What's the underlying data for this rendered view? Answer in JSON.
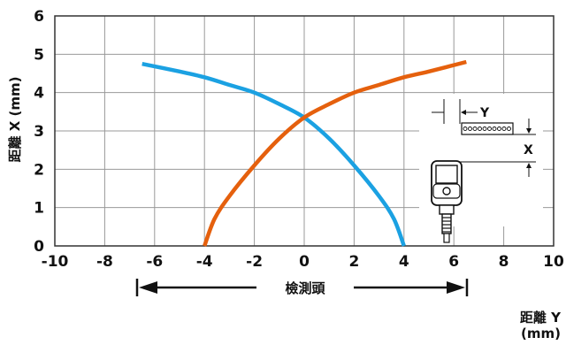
{
  "chart_data": {
    "type": "line",
    "xlabel": "距離 Y",
    "xlabel_unit": "(mm)",
    "ylabel": "距離 X (mm)",
    "xlim": [
      -10,
      10
    ],
    "ylim": [
      0,
      6
    ],
    "x_ticks": [
      "-10",
      "-8",
      "-6",
      "-4",
      "-2",
      "0",
      "2",
      "4",
      "6",
      "8",
      "10"
    ],
    "y_ticks": [
      "0",
      "1",
      "2",
      "3",
      "4",
      "5",
      "6"
    ],
    "grid": true,
    "series": [
      {
        "color": "#1ba1e2",
        "x": [
          -6.5,
          -5,
          -4,
          -3,
          -2,
          -1,
          0,
          1,
          2,
          3,
          3.6,
          4
        ],
        "y": [
          4.75,
          4.55,
          4.4,
          4.2,
          4.0,
          3.7,
          3.35,
          2.8,
          2.1,
          1.3,
          0.7,
          0
        ]
      },
      {
        "color": "#e5600d",
        "x": [
          -4,
          -3.6,
          -3,
          -2,
          -1,
          0,
          1,
          2,
          3,
          4,
          5,
          6.5
        ],
        "y": [
          0,
          0.7,
          1.3,
          2.1,
          2.8,
          3.35,
          3.7,
          4.0,
          4.2,
          4.4,
          4.55,
          4.8
        ]
      }
    ],
    "annotations": {
      "sensor_head_label": "檢測頭",
      "inset_y_label": "Y",
      "inset_x_label": "X"
    }
  }
}
